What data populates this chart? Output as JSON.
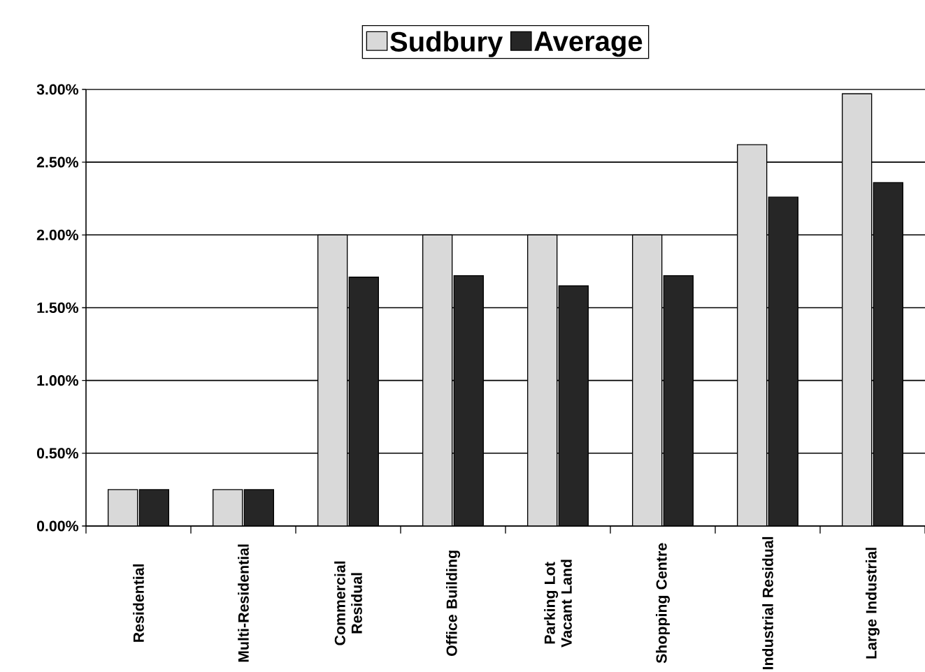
{
  "chart_data": {
    "type": "bar",
    "categories": [
      "Residential",
      "Multi-Residential",
      "Commercial Residual",
      "Office Building",
      "Parking Lot Vacant Land",
      "Shopping Centre",
      "Industrial Residual",
      "Large Industrial"
    ],
    "series": [
      {
        "name": "Sudbury",
        "color": "#d9d9d9",
        "values": [
          0.25,
          0.25,
          2.0,
          2.0,
          2.0,
          2.0,
          2.62,
          2.97
        ]
      },
      {
        "name": "Average",
        "color": "#262626",
        "values": [
          0.25,
          0.25,
          1.71,
          1.72,
          1.65,
          1.72,
          2.26,
          2.36
        ]
      }
    ],
    "ylim": [
      0,
      3
    ],
    "yticks": [
      {
        "value": 0,
        "label": "0.00%"
      },
      {
        "value": 0.5,
        "label": "0.50%"
      },
      {
        "value": 1,
        "label": "1.00%"
      },
      {
        "value": 1.5,
        "label": "1.50%"
      },
      {
        "value": 2,
        "label": "2.00%"
      },
      {
        "value": 2.5,
        "label": "2.50%"
      },
      {
        "value": 3,
        "label": "3.00%"
      }
    ],
    "grid": "y",
    "legend": "top"
  }
}
